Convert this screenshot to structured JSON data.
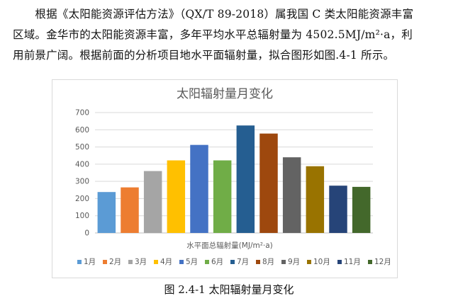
{
  "text": {
    "line1": "　　根据《太阳能资源评估方法》（QX/T 89-2018）属我国 C 类太阳能资源丰富",
    "line2": "区域。金华市的太阳能资源丰富，多年平均水平总辐射量为 4502.5MJ/m²·a，利",
    "line3": "用前景广阔。根据前面的分析项目地水平面辐射量，拟合图形如图.4-1 所示。"
  },
  "chart_data": {
    "type": "bar",
    "title": "太阳辐射量月变化",
    "xlabel": "水平面总辐射量(MJ/m²·a)",
    "ylabel": "",
    "ylim": [
      0,
      700
    ],
    "yticks": [
      0,
      100,
      200,
      300,
      400,
      500,
      600,
      700
    ],
    "grid": true,
    "legend_position": "bottom",
    "series": [
      {
        "name": "1月",
        "value": 238,
        "color": "#5b9bd5"
      },
      {
        "name": "2月",
        "value": 265,
        "color": "#ed7d31"
      },
      {
        "name": "3月",
        "value": 360,
        "color": "#a5a5a5"
      },
      {
        "name": "4月",
        "value": 422,
        "color": "#ffc000"
      },
      {
        "name": "5月",
        "value": 512,
        "color": "#4472c4"
      },
      {
        "name": "6月",
        "value": 422,
        "color": "#70ad47"
      },
      {
        "name": "7月",
        "value": 625,
        "color": "#255e91"
      },
      {
        "name": "8月",
        "value": 578,
        "color": "#9e480e"
      },
      {
        "name": "9月",
        "value": 440,
        "color": "#636363"
      },
      {
        "name": "10月",
        "value": 388,
        "color": "#997300"
      },
      {
        "name": "11月",
        "value": 275,
        "color": "#264478"
      },
      {
        "name": "12月",
        "value": 268,
        "color": "#43682b"
      }
    ]
  },
  "caption": "图 2.4-1 太阳辐射量月变化"
}
